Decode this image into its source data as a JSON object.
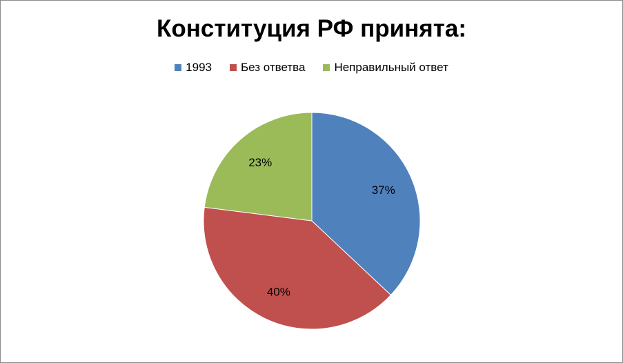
{
  "chart_data": {
    "type": "pie",
    "title": "Конституция РФ принята:",
    "legend_position": "top",
    "slices": [
      {
        "name": "1993",
        "value": 37,
        "label": "37%",
        "color": "#4f81bd"
      },
      {
        "name": "Без ответва",
        "value": 40,
        "label": "40%",
        "color": "#c0504d"
      },
      {
        "name": "Неправильный ответ",
        "value": 23,
        "label": "23%",
        "color": "#9bbb59"
      }
    ]
  }
}
